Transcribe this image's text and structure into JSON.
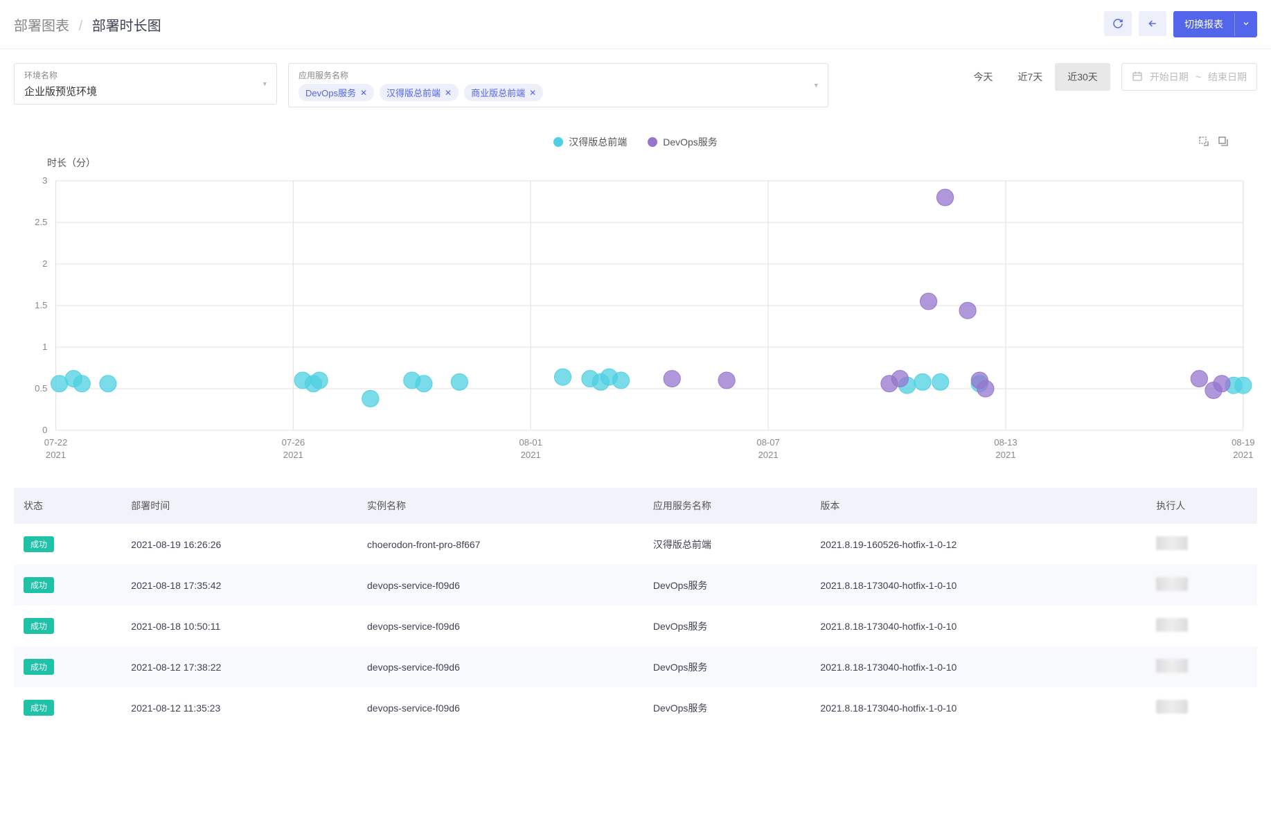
{
  "breadcrumb": {
    "parent": "部署图表",
    "separator": "/",
    "current": "部署时长图"
  },
  "header_actions": {
    "switch_report_label": "切换报表"
  },
  "filters": {
    "env_label": "环境名称",
    "env_value": "企业版预览环境",
    "app_label": "应用服务名称",
    "app_tags": [
      "DevOps服务",
      "汉得版总前端",
      "商业版总前端"
    ]
  },
  "time_range": {
    "today": "今天",
    "last7": "近7天",
    "last30": "近30天",
    "active": "last30"
  },
  "date_picker": {
    "start_placeholder": "开始日期",
    "separator": "~",
    "end_placeholder": "结束日期"
  },
  "chart": {
    "type": "scatter",
    "y_title": "时长（分）",
    "legend": [
      {
        "label": "汉得版总前端",
        "color": "#4dd0e1"
      },
      {
        "label": "DevOps服务",
        "color": "#9575cd"
      }
    ],
    "ylim": [
      0,
      3
    ],
    "ytick_step": 0.5,
    "yticks": [
      "0",
      "0.5",
      "1",
      "1.5",
      "2",
      "2.5",
      "3"
    ],
    "xticks": [
      {
        "date": "07-22",
        "year": "2021"
      },
      {
        "date": "07-26",
        "year": "2021"
      },
      {
        "date": "08-01",
        "year": "2021"
      },
      {
        "date": "08-07",
        "year": "2021"
      },
      {
        "date": "08-13",
        "year": "2021"
      },
      {
        "date": "08-19",
        "year": "2021"
      }
    ],
    "xrange": [
      "2021-07-22",
      "2021-08-19"
    ],
    "colors": {
      "teal": "#4dd0e1",
      "purple": "#9575cd",
      "grid": "#e0e0e0",
      "axis_text": "#888888",
      "background": "#ffffff"
    },
    "bubble_radius": 12,
    "bubble_opacity": 0.75,
    "series_teal": [
      {
        "x": 0.003,
        "y": 0.56
      },
      {
        "x": 0.015,
        "y": 0.62
      },
      {
        "x": 0.022,
        "y": 0.56
      },
      {
        "x": 0.044,
        "y": 0.56
      },
      {
        "x": 0.208,
        "y": 0.6
      },
      {
        "x": 0.217,
        "y": 0.56
      },
      {
        "x": 0.222,
        "y": 0.6
      },
      {
        "x": 0.265,
        "y": 0.38
      },
      {
        "x": 0.3,
        "y": 0.6
      },
      {
        "x": 0.31,
        "y": 0.56
      },
      {
        "x": 0.34,
        "y": 0.58
      },
      {
        "x": 0.427,
        "y": 0.64
      },
      {
        "x": 0.45,
        "y": 0.62
      },
      {
        "x": 0.459,
        "y": 0.58
      },
      {
        "x": 0.466,
        "y": 0.64
      },
      {
        "x": 0.476,
        "y": 0.6
      },
      {
        "x": 0.717,
        "y": 0.54
      },
      {
        "x": 0.73,
        "y": 0.58
      },
      {
        "x": 0.745,
        "y": 0.58
      },
      {
        "x": 0.778,
        "y": 0.56
      },
      {
        "x": 0.992,
        "y": 0.54
      },
      {
        "x": 1.0,
        "y": 0.54
      }
    ],
    "series_purple": [
      {
        "x": 0.519,
        "y": 0.62
      },
      {
        "x": 0.565,
        "y": 0.6
      },
      {
        "x": 0.702,
        "y": 0.56
      },
      {
        "x": 0.711,
        "y": 0.62
      },
      {
        "x": 0.735,
        "y": 1.55
      },
      {
        "x": 0.749,
        "y": 2.8
      },
      {
        "x": 0.768,
        "y": 1.44
      },
      {
        "x": 0.778,
        "y": 0.6
      },
      {
        "x": 0.783,
        "y": 0.5
      },
      {
        "x": 0.963,
        "y": 0.62
      },
      {
        "x": 0.975,
        "y": 0.48
      },
      {
        "x": 0.982,
        "y": 0.56
      }
    ]
  },
  "table": {
    "columns": [
      "状态",
      "部署时间",
      "实例名称",
      "应用服务名称",
      "版本",
      "执行人"
    ],
    "status_success": "成功",
    "rows": [
      {
        "status": "成功",
        "time": "2021-08-19 16:26:26",
        "instance": "choerodon-front-pro-8f667",
        "app": "汉得版总前端",
        "version": "2021.8.19-160526-hotfix-1-0-12"
      },
      {
        "status": "成功",
        "time": "2021-08-18 17:35:42",
        "instance": "devops-service-f09d6",
        "app": "DevOps服务",
        "version": "2021.8.18-173040-hotfix-1-0-10"
      },
      {
        "status": "成功",
        "time": "2021-08-18 10:50:11",
        "instance": "devops-service-f09d6",
        "app": "DevOps服务",
        "version": "2021.8.18-173040-hotfix-1-0-10"
      },
      {
        "status": "成功",
        "time": "2021-08-12 17:38:22",
        "instance": "devops-service-f09d6",
        "app": "DevOps服务",
        "version": "2021.8.18-173040-hotfix-1-0-10"
      },
      {
        "status": "成功",
        "time": "2021-08-12 11:35:23",
        "instance": "devops-service-f09d6",
        "app": "DevOps服务",
        "version": "2021.8.18-173040-hotfix-1-0-10"
      }
    ]
  }
}
